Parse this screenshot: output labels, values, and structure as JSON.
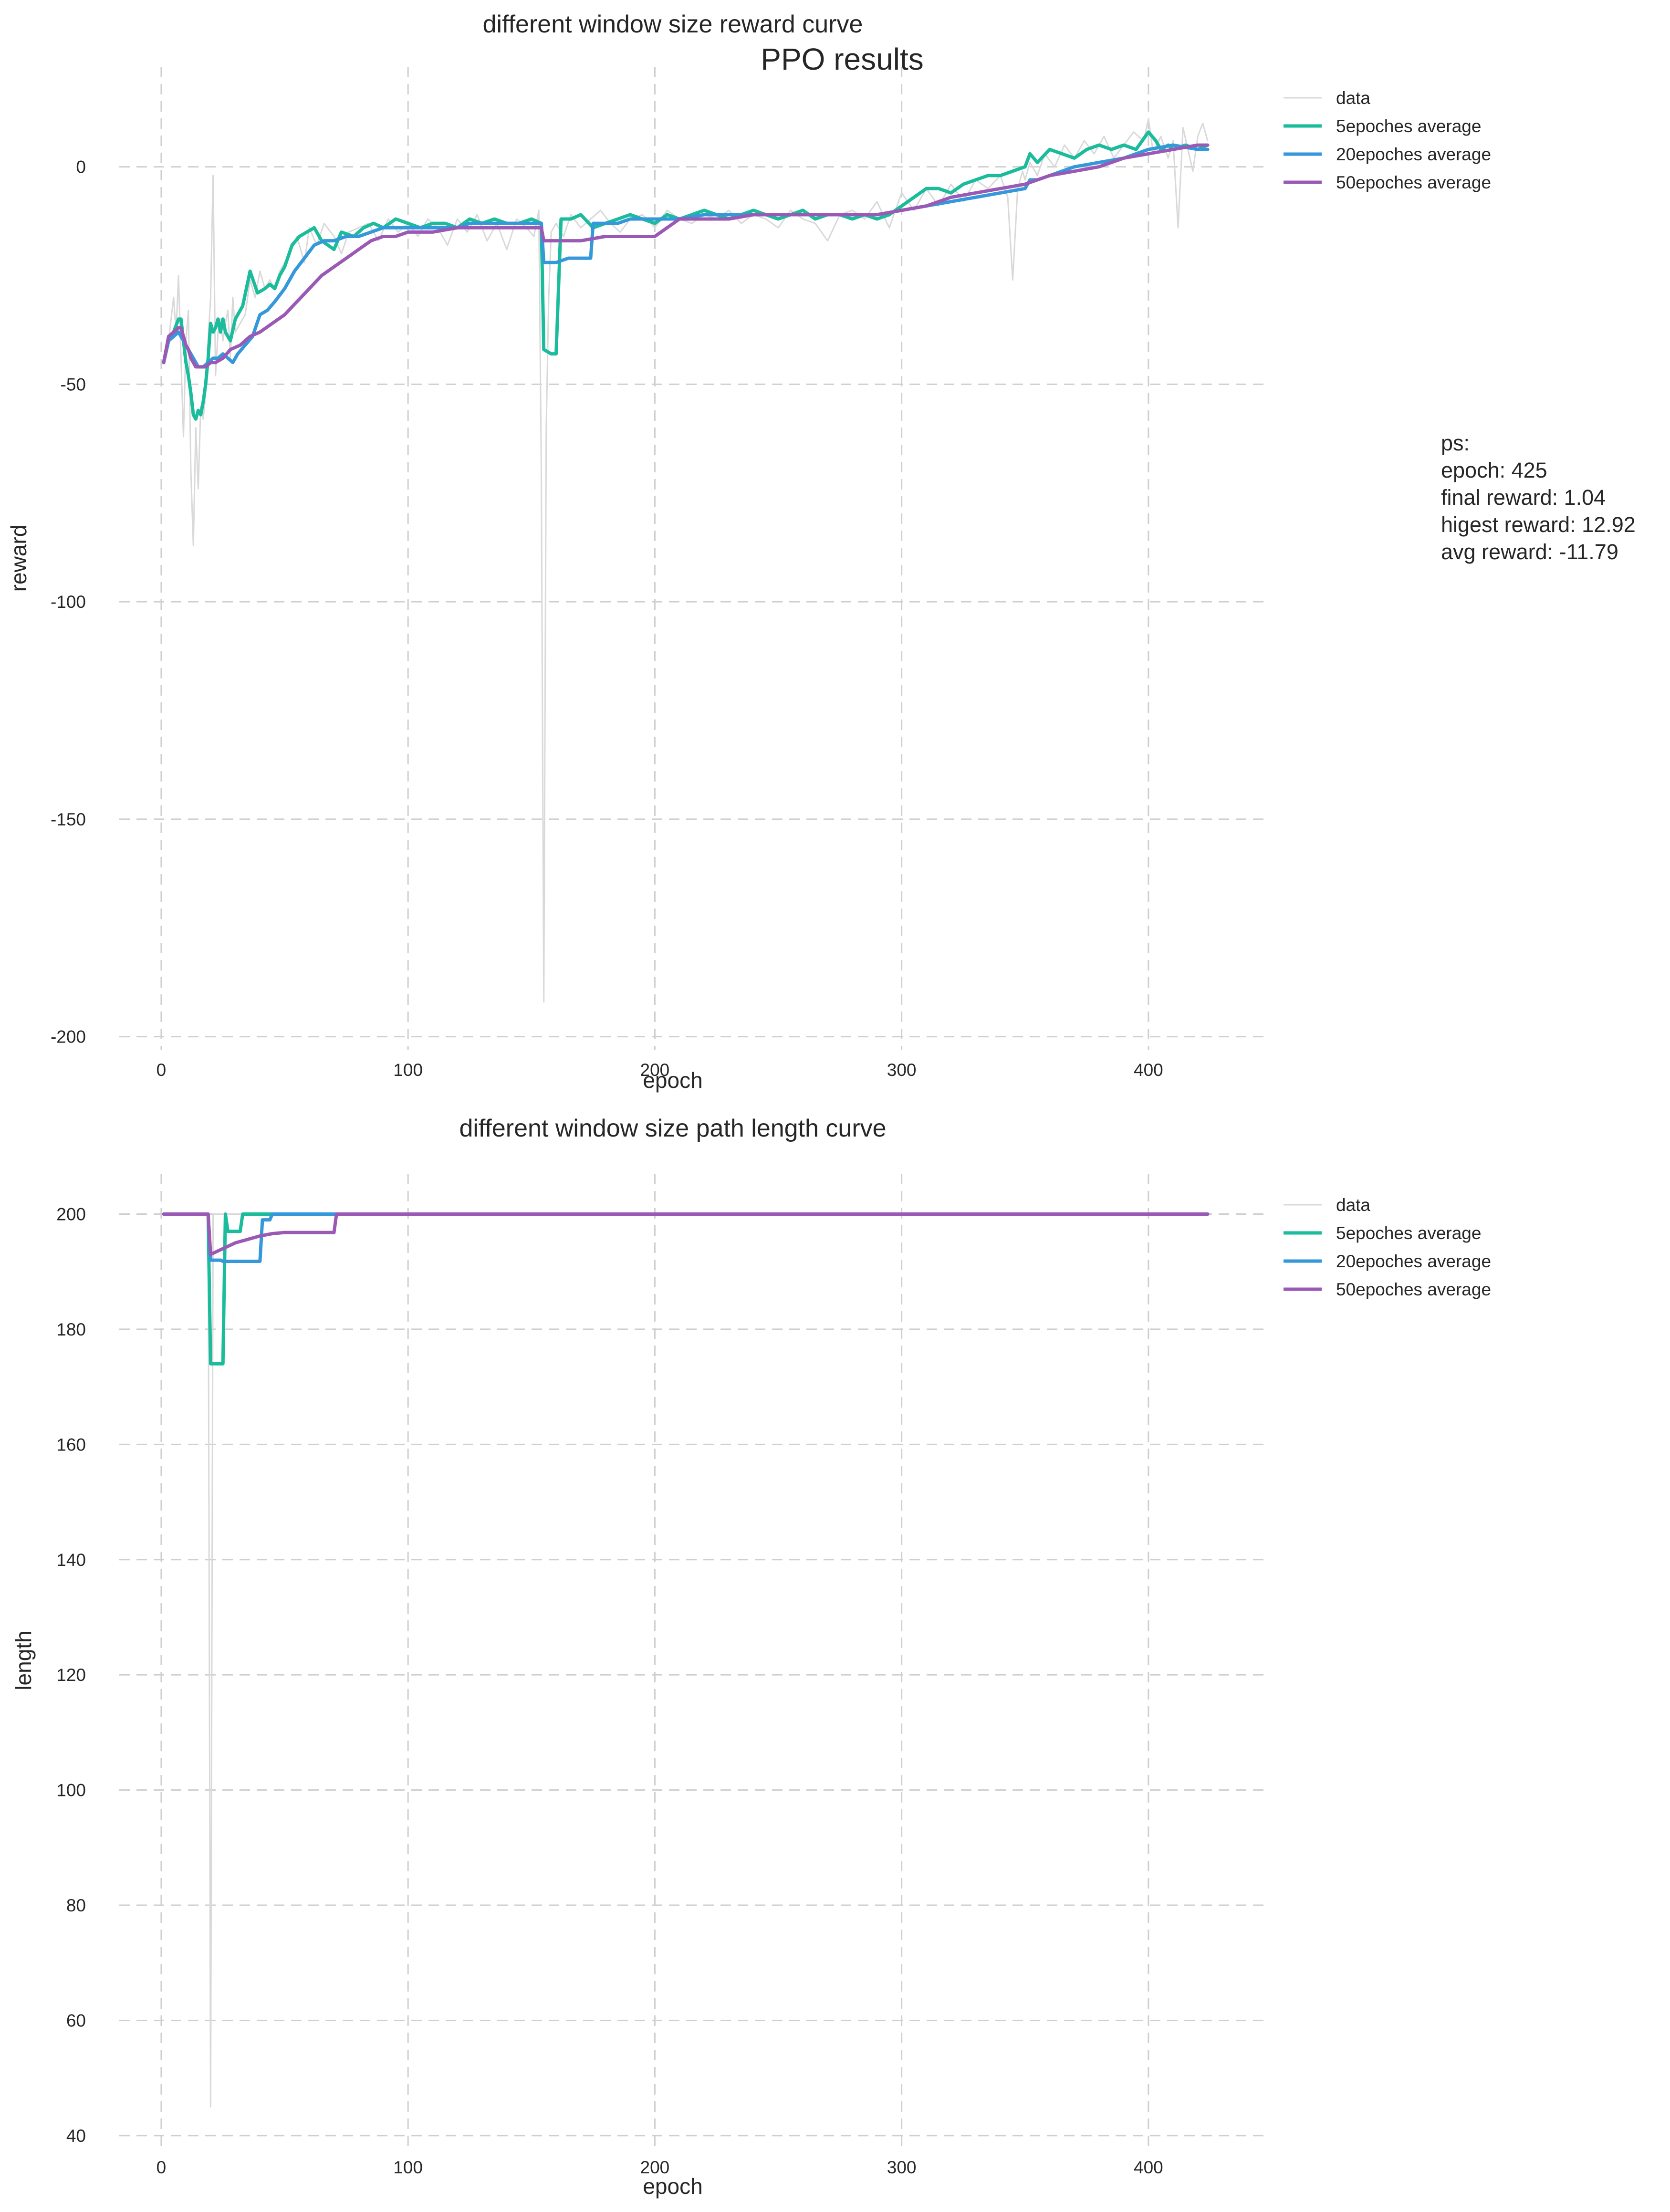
{
  "figure": {
    "title": "PPO results"
  },
  "colors": {
    "data": "#d9d9d9",
    "avg5": "#1abc9c",
    "avg20": "#3498db",
    "avg50": "#9b59b6",
    "grid": "#cfcfcf"
  },
  "note": {
    "lines": [
      "ps:",
      "epoch: 425",
      "final reward: 1.04",
      "higest reward: 12.92",
      "avg reward: -11.79"
    ]
  },
  "chart_data": [
    {
      "type": "line",
      "title": "different window size reward curve",
      "xlabel": "epoch",
      "ylabel": "reward",
      "xlim": [
        -17,
        447
      ],
      "ylim": [
        -203,
        23
      ],
      "xticks": [
        0,
        100,
        200,
        300,
        400
      ],
      "yticks": [
        0,
        -50,
        -100,
        -150,
        -200
      ],
      "grid": true,
      "legend": "outside-right-top",
      "series": [
        {
          "name": "data",
          "key": "data",
          "x": [
            1,
            3,
            5,
            6,
            7,
            8,
            9,
            10,
            11,
            12,
            13,
            14,
            15,
            16,
            17,
            18,
            19,
            20,
            21,
            22,
            23,
            24,
            25,
            26,
            27,
            28,
            29,
            30,
            32,
            34,
            36,
            38,
            40,
            42,
            44,
            46,
            48,
            50,
            52,
            55,
            58,
            60,
            63,
            66,
            70,
            73,
            76,
            80,
            84,
            88,
            92,
            96,
            100,
            104,
            108,
            112,
            116,
            120,
            124,
            128,
            132,
            136,
            140,
            144,
            148,
            151,
            153,
            154,
            155,
            156,
            157,
            158,
            160,
            163,
            166,
            170,
            174,
            178,
            182,
            186,
            190,
            195,
            200,
            205,
            210,
            215,
            220,
            225,
            230,
            235,
            240,
            245,
            250,
            255,
            260,
            265,
            270,
            275,
            280,
            285,
            290,
            295,
            300,
            305,
            310,
            315,
            320,
            325,
            330,
            335,
            340,
            343,
            345,
            347,
            349,
            350,
            352,
            355,
            358,
            362,
            366,
            370,
            374,
            378,
            382,
            386,
            390,
            394,
            398,
            400,
            402,
            405,
            408,
            410,
            412,
            414,
            416,
            418,
            420,
            422,
            424
          ],
          "y": [
            -45,
            -40,
            -30,
            -38,
            -25,
            -44,
            -62,
            -40,
            -33,
            -70,
            -87,
            -60,
            -74,
            -55,
            -58,
            -52,
            -40,
            -30,
            -2,
            -48,
            -38,
            -35,
            -40,
            -36,
            -33,
            -44,
            -30,
            -38,
            -36,
            -34,
            -26,
            -30,
            -24,
            -28,
            -26,
            -28,
            -24,
            -22,
            -20,
            -16,
            -22,
            -14,
            -18,
            -13,
            -16,
            -20,
            -15,
            -14,
            -13,
            -17,
            -12,
            -15,
            -13,
            -16,
            -12,
            -14,
            -18,
            -12,
            -15,
            -11,
            -17,
            -13,
            -19,
            -12,
            -14,
            -16,
            -10,
            -70,
            -192,
            -60,
            -30,
            -15,
            -13,
            -16,
            -11,
            -14,
            -12,
            -10,
            -13,
            -15,
            -12,
            -11,
            -14,
            -10,
            -12,
            -13,
            -11,
            -12,
            -10,
            -13,
            -11,
            -12,
            -14,
            -10,
            -12,
            -13,
            -17,
            -11,
            -10,
            -12,
            -8,
            -14,
            -6,
            -10,
            -5,
            -9,
            -4,
            -8,
            -3,
            -5,
            -2,
            -7,
            -26,
            -5,
            -1,
            -3,
            1,
            -2,
            3,
            0,
            5,
            2,
            6,
            3,
            7,
            2,
            5,
            8,
            6,
            11,
            3,
            7,
            2,
            6,
            -14,
            9,
            4,
            -1,
            7,
            10,
            6
          ],
          "lineWidth": 3
        },
        {
          "name": "5epoches average",
          "key": "avg5",
          "x": [
            1,
            3,
            5,
            7,
            8,
            9,
            10,
            11,
            12,
            13,
            14,
            15,
            16,
            17,
            18,
            19,
            20,
            21,
            22,
            23,
            24,
            25,
            26,
            28,
            30,
            33,
            36,
            39,
            42,
            44,
            46,
            48,
            50,
            53,
            56,
            59,
            62,
            65,
            70,
            73,
            78,
            82,
            86,
            90,
            95,
            100,
            105,
            110,
            115,
            120,
            125,
            130,
            135,
            140,
            145,
            150,
            154,
            155,
            158,
            160,
            162,
            164,
            166,
            170,
            175,
            180,
            185,
            190,
            195,
            200,
            205,
            210,
            215,
            220,
            225,
            230,
            235,
            240,
            245,
            250,
            255,
            260,
            265,
            270,
            275,
            280,
            285,
            290,
            295,
            300,
            305,
            310,
            315,
            320,
            325,
            330,
            335,
            340,
            345,
            350,
            352,
            355,
            360,
            365,
            370,
            375,
            380,
            385,
            390,
            395,
            400,
            403,
            405,
            408,
            410,
            415,
            420,
            424
          ],
          "y": [
            -45,
            -39,
            -38,
            -35,
            -35,
            -40,
            -45,
            -48,
            -52,
            -57,
            -58,
            -56,
            -57,
            -54,
            -50,
            -44,
            -36,
            -38,
            -37,
            -35,
            -38,
            -35,
            -38,
            -40,
            -35,
            -32,
            -24,
            -29,
            -28,
            -27,
            -28,
            -25,
            -23,
            -18,
            -16,
            -15,
            -14,
            -17,
            -19,
            -15,
            -16,
            -14,
            -13,
            -14,
            -12,
            -13,
            -14,
            -13,
            -13,
            -14,
            -12,
            -13,
            -12,
            -13,
            -13,
            -12,
            -13,
            -42,
            -43,
            -43,
            -12,
            -12,
            -12,
            -11,
            -14,
            -13,
            -12,
            -11,
            -12,
            -13,
            -11,
            -12,
            -11,
            -10,
            -11,
            -12,
            -11,
            -10,
            -11,
            -12,
            -11,
            -10,
            -12,
            -11,
            -11,
            -12,
            -11,
            -12,
            -11,
            -9,
            -7,
            -5,
            -5,
            -6,
            -4,
            -3,
            -2,
            -2,
            -1,
            0,
            3,
            1,
            4,
            3,
            2,
            4,
            5,
            4,
            5,
            4,
            8,
            6,
            4,
            5,
            4,
            5,
            4,
            5
          ]
        },
        {
          "name": "20epoches average",
          "key": "avg20",
          "x": [
            1,
            3,
            5,
            7,
            9,
            11,
            13,
            15,
            17,
            19,
            21,
            23,
            25,
            27,
            29,
            31,
            34,
            37,
            40,
            43,
            46,
            50,
            54,
            58,
            62,
            66,
            70,
            75,
            80,
            85,
            90,
            95,
            100,
            105,
            110,
            115,
            120,
            125,
            130,
            135,
            140,
            145,
            150,
            154,
            155,
            160,
            165,
            170,
            174,
            175,
            180,
            185,
            190,
            195,
            200,
            210,
            220,
            230,
            240,
            250,
            260,
            270,
            280,
            290,
            300,
            310,
            320,
            330,
            340,
            350,
            352,
            355,
            360,
            365,
            370,
            380,
            390,
            400,
            410,
            420,
            424
          ],
          "y": [
            -45,
            -40,
            -39,
            -38,
            -40,
            -42,
            -44,
            -46,
            -46,
            -45,
            -44,
            -44,
            -43,
            -44,
            -45,
            -43,
            -41,
            -39,
            -34,
            -33,
            -31,
            -28,
            -24,
            -21,
            -18,
            -17,
            -17,
            -16,
            -16,
            -15,
            -14,
            -14,
            -14,
            -14,
            -14,
            -14,
            -14,
            -13,
            -13,
            -13,
            -13,
            -13,
            -13,
            -13,
            -22,
            -22,
            -21,
            -21,
            -21,
            -13,
            -13,
            -13,
            -12,
            -12,
            -12,
            -12,
            -11,
            -11,
            -11,
            -11,
            -11,
            -11,
            -11,
            -11,
            -10,
            -9,
            -8,
            -7,
            -6,
            -5,
            -3,
            -3,
            -2,
            -1,
            0,
            1,
            2,
            4,
            5,
            4,
            4
          ]
        },
        {
          "name": "50epoches average",
          "key": "avg50",
          "x": [
            1,
            3,
            5,
            7,
            8,
            9,
            10,
            11,
            12,
            13,
            14,
            16,
            18,
            20,
            22,
            25,
            28,
            32,
            36,
            40,
            45,
            50,
            55,
            60,
            65,
            70,
            75,
            80,
            85,
            90,
            95,
            100,
            110,
            120,
            130,
            140,
            150,
            154,
            155,
            160,
            170,
            180,
            190,
            200,
            210,
            220,
            230,
            240,
            250,
            260,
            270,
            280,
            290,
            300,
            310,
            320,
            330,
            340,
            350,
            360,
            370,
            380,
            390,
            400,
            410,
            420,
            424
          ],
          "y": [
            -45,
            -39,
            -38,
            -37,
            -37,
            -39,
            -41,
            -42,
            -44,
            -45,
            -46,
            -46,
            -46,
            -45,
            -45,
            -44,
            -42,
            -41,
            -39,
            -38,
            -36,
            -34,
            -31,
            -28,
            -25,
            -23,
            -21,
            -19,
            -17,
            -16,
            -16,
            -15,
            -15,
            -14,
            -14,
            -14,
            -14,
            -14,
            -17,
            -17,
            -17,
            -16,
            -16,
            -16,
            -12,
            -12,
            -12,
            -11,
            -11,
            -11,
            -11,
            -11,
            -11,
            -10,
            -9,
            -7,
            -6,
            -5,
            -4,
            -2,
            -1,
            0,
            2,
            3,
            4,
            5,
            5
          ]
        }
      ]
    },
    {
      "type": "line",
      "title": "different window size path length curve",
      "xlabel": "epoch",
      "ylabel": "length",
      "xlim": [
        -17,
        447
      ],
      "ylim": [
        38,
        207
      ],
      "xticks": [
        0,
        100,
        200,
        300,
        400
      ],
      "yticks": [
        200,
        180,
        160,
        140,
        120,
        100,
        80,
        60,
        40
      ],
      "grid": true,
      "legend": "outside-right-top",
      "series": [
        {
          "name": "data",
          "key": "data",
          "x": [
            1,
            19,
            20,
            21,
            22,
            424
          ],
          "y": [
            200,
            200,
            45,
            200,
            200,
            200
          ],
          "lineWidth": 3
        },
        {
          "name": "5epoches average",
          "key": "avg5",
          "x": [
            1,
            19,
            20,
            25,
            26,
            27,
            32,
            33,
            424
          ],
          "y": [
            200,
            200,
            174,
            174,
            200,
            197,
            197,
            200,
            200
          ]
        },
        {
          "name": "20epoches average",
          "key": "avg20",
          "x": [
            1,
            19,
            20,
            24,
            25,
            40,
            41,
            44,
            45,
            424
          ],
          "y": [
            200,
            200,
            192,
            192,
            191.8,
            191.8,
            199,
            199,
            200,
            200
          ]
        },
        {
          "name": "50epoches average",
          "key": "avg50",
          "x": [
            1,
            19,
            20,
            25,
            30,
            35,
            40,
            45,
            50,
            55,
            60,
            70,
            71,
            424
          ],
          "y": [
            200,
            200,
            193,
            194,
            195,
            195.6,
            196.2,
            196.6,
            196.8,
            196.8,
            196.8,
            196.8,
            200,
            200
          ]
        }
      ]
    }
  ]
}
